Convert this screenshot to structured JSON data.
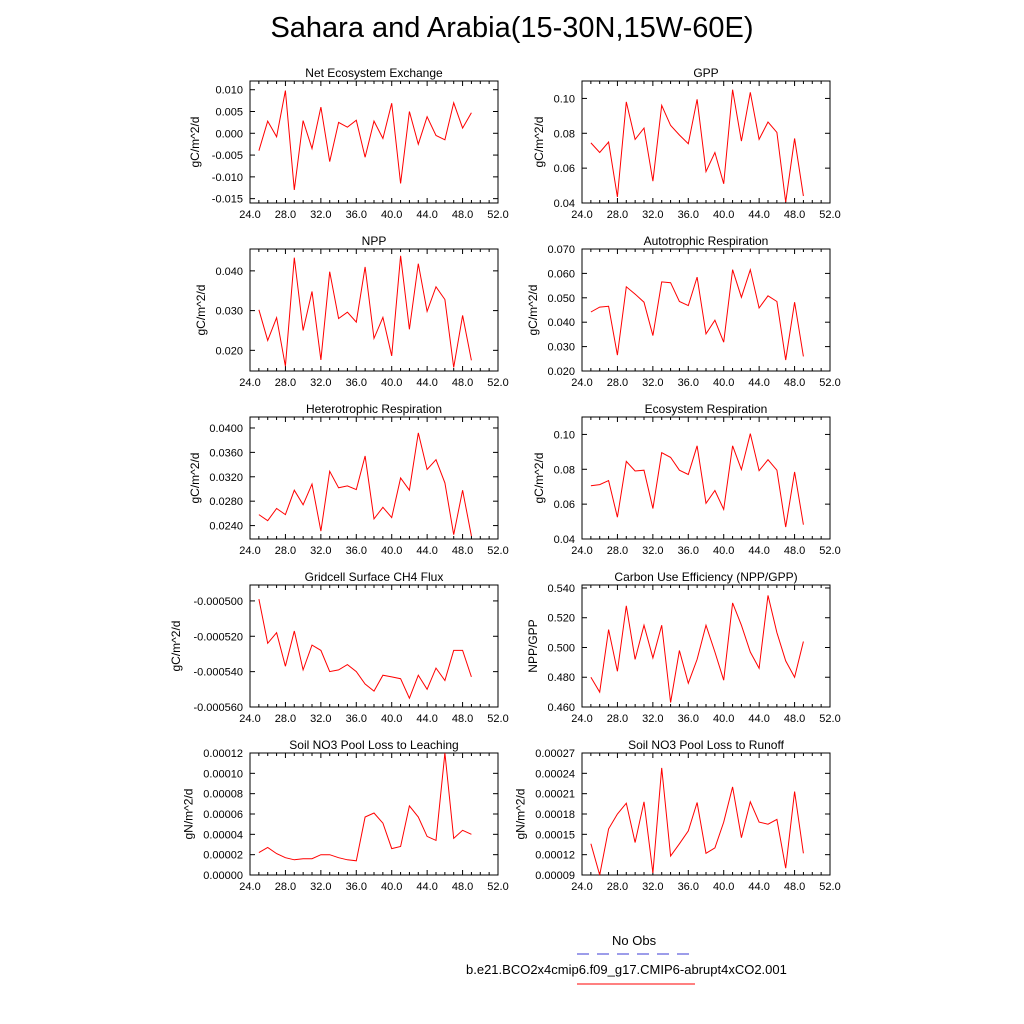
{
  "title": "Sahara and Arabia(15-30N,15W-60E)",
  "legend": {
    "obs_label": "No Obs",
    "model_label": "b.e21.BCO2x4cmip6.f09_g17.CMIP6-abrupt4xCO2.001",
    "obs_color": "#3b3bd6",
    "model_color": "#ff0000"
  },
  "chart_data": [
    {
      "type": "line",
      "title": "Net Ecosystem Exchange",
      "ylabel": "gC/m^2/d",
      "xlim": [
        24,
        52
      ],
      "x_ticks": [
        "24.0",
        "28.0",
        "32.0",
        "36.0",
        "40.0",
        "44.0",
        "48.0",
        "52.0"
      ],
      "ylim": [
        -0.016,
        0.012
      ],
      "y_ticks": [
        "-0.015",
        "-0.010",
        "-0.005",
        "0.000",
        "0.005",
        "0.010"
      ],
      "y_tick_values": [
        -0.015,
        -0.01,
        -0.005,
        0,
        0.005,
        0.01
      ],
      "x": [
        25,
        26,
        27,
        28,
        29,
        30,
        31,
        32,
        33,
        34,
        35,
        36,
        37,
        38,
        39,
        40,
        41,
        42,
        43,
        44,
        45,
        46,
        47,
        48,
        49
      ],
      "values": [
        -0.004,
        0.0028,
        -0.0008,
        0.0098,
        -0.013,
        0.0029,
        -0.0035,
        0.006,
        -0.0065,
        0.0025,
        0.0014,
        0.003,
        -0.0055,
        0.0028,
        -0.0012,
        0.0069,
        -0.0115,
        0.005,
        -0.0025,
        0.0038,
        -0.0005,
        -0.0015,
        0.007,
        0.0012,
        0.0047
      ],
      "line_color": "#ff0000"
    },
    {
      "type": "line",
      "title": "GPP",
      "ylabel": "gC/m^2/d",
      "xlim": [
        24,
        52
      ],
      "x_ticks": [
        "24.0",
        "28.0",
        "32.0",
        "36.0",
        "40.0",
        "44.0",
        "48.0",
        "52.0"
      ],
      "ylim": [
        0.04,
        0.11
      ],
      "y_ticks": [
        "0.04",
        "0.06",
        "0.08",
        "0.10"
      ],
      "y_tick_values": [
        0.04,
        0.06,
        0.08,
        0.1
      ],
      "x": [
        25,
        26,
        27,
        28,
        29,
        30,
        31,
        32,
        33,
        34,
        35,
        36,
        37,
        38,
        39,
        40,
        41,
        42,
        43,
        44,
        45,
        46,
        47,
        48,
        49
      ],
      "values": [
        0.0745,
        0.069,
        0.075,
        0.0435,
        0.098,
        0.0765,
        0.083,
        0.0525,
        0.096,
        0.0845,
        0.079,
        0.074,
        0.0995,
        0.058,
        0.069,
        0.051,
        0.105,
        0.0755,
        0.1035,
        0.0765,
        0.0865,
        0.0805,
        0.0405,
        0.077,
        0.044
      ],
      "line_color": "#ff0000"
    },
    {
      "type": "line",
      "title": "NPP",
      "ylabel": "gC/m^2/d",
      "xlim": [
        24,
        52
      ],
      "x_ticks": [
        "24.0",
        "28.0",
        "32.0",
        "36.0",
        "40.0",
        "44.0",
        "48.0",
        "52.0"
      ],
      "ylim": [
        0.0148,
        0.0455
      ],
      "y_ticks": [
        "0.020",
        "0.030",
        "0.040"
      ],
      "y_tick_values": [
        0.02,
        0.03,
        0.04
      ],
      "x": [
        25,
        26,
        27,
        28,
        29,
        30,
        31,
        32,
        33,
        34,
        35,
        36,
        37,
        38,
        39,
        40,
        41,
        42,
        43,
        44,
        45,
        46,
        47,
        48,
        49
      ],
      "values": [
        0.0302,
        0.0225,
        0.0282,
        0.016,
        0.0433,
        0.025,
        0.0348,
        0.0176,
        0.0398,
        0.028,
        0.0296,
        0.0271,
        0.041,
        0.023,
        0.0283,
        0.0186,
        0.0438,
        0.0253,
        0.0418,
        0.0298,
        0.036,
        0.0328,
        0.0157,
        0.0288,
        0.0175
      ],
      "line_color": "#ff0000"
    },
    {
      "type": "line",
      "title": "Autotrophic Respiration",
      "ylabel": "gC/m^2/d",
      "xlim": [
        24,
        52
      ],
      "x_ticks": [
        "24.0",
        "28.0",
        "32.0",
        "36.0",
        "40.0",
        "44.0",
        "48.0",
        "52.0"
      ],
      "ylim": [
        0.02,
        0.07
      ],
      "y_ticks": [
        "0.020",
        "0.030",
        "0.040",
        "0.050",
        "0.060",
        "0.070"
      ],
      "y_tick_values": [
        0.02,
        0.03,
        0.04,
        0.05,
        0.06,
        0.07
      ],
      "x": [
        25,
        26,
        27,
        28,
        29,
        30,
        31,
        32,
        33,
        34,
        35,
        36,
        37,
        38,
        39,
        40,
        41,
        42,
        43,
        44,
        45,
        46,
        47,
        48,
        49
      ],
      "values": [
        0.0442,
        0.0462,
        0.0465,
        0.0265,
        0.0545,
        0.0515,
        0.0482,
        0.0345,
        0.0565,
        0.0562,
        0.0485,
        0.0468,
        0.0585,
        0.0352,
        0.0408,
        0.0318,
        0.0615,
        0.0502,
        0.0615,
        0.0458,
        0.0508,
        0.0485,
        0.0245,
        0.0482,
        0.026
      ],
      "line_color": "#ff0000"
    },
    {
      "type": "line",
      "title": "Heterotrophic Respiration",
      "ylabel": "gC/m^2/d",
      "xlim": [
        24,
        52
      ],
      "x_ticks": [
        "24.0",
        "28.0",
        "32.0",
        "36.0",
        "40.0",
        "44.0",
        "48.0",
        "52.0"
      ],
      "ylim": [
        0.0218,
        0.0418
      ],
      "y_ticks": [
        "0.0240",
        "0.0280",
        "0.0320",
        "0.0360",
        "0.0400"
      ],
      "y_tick_values": [
        0.024,
        0.028,
        0.032,
        0.036,
        0.04
      ],
      "x": [
        25,
        26,
        27,
        28,
        29,
        30,
        31,
        32,
        33,
        34,
        35,
        36,
        37,
        38,
        39,
        40,
        41,
        42,
        43,
        44,
        45,
        46,
        47,
        48,
        49
      ],
      "values": [
        0.0258,
        0.0248,
        0.0268,
        0.0258,
        0.0298,
        0.0274,
        0.0308,
        0.0231,
        0.0329,
        0.0302,
        0.0305,
        0.0299,
        0.0354,
        0.0251,
        0.027,
        0.0253,
        0.0318,
        0.0298,
        0.0392,
        0.0332,
        0.0348,
        0.031,
        0.0225,
        0.0298,
        0.0223
      ],
      "line_color": "#ff0000"
    },
    {
      "type": "line",
      "title": "Ecosystem Respiration",
      "ylabel": "gC/m^2/d",
      "xlim": [
        24,
        52
      ],
      "x_ticks": [
        "24.0",
        "28.0",
        "32.0",
        "36.0",
        "40.0",
        "44.0",
        "48.0",
        "52.0"
      ],
      "ylim": [
        0.04,
        0.11
      ],
      "y_ticks": [
        "0.04",
        "0.06",
        "0.08",
        "0.10"
      ],
      "y_tick_values": [
        0.04,
        0.06,
        0.08,
        0.1
      ],
      "x": [
        25,
        26,
        27,
        28,
        29,
        30,
        31,
        32,
        33,
        34,
        35,
        36,
        37,
        38,
        39,
        40,
        41,
        42,
        43,
        44,
        45,
        46,
        47,
        48,
        49
      ],
      "values": [
        0.0705,
        0.0712,
        0.0735,
        0.0525,
        0.0845,
        0.079,
        0.0795,
        0.0575,
        0.0895,
        0.0868,
        0.0795,
        0.077,
        0.0935,
        0.0605,
        0.0678,
        0.057,
        0.0935,
        0.0798,
        0.1005,
        0.0792,
        0.0855,
        0.0795,
        0.0468,
        0.0785,
        0.0482
      ],
      "line_color": "#ff0000"
    },
    {
      "type": "line",
      "title": "Gridcell Surface CH4 Flux",
      "ylabel": "gC/m^2/d",
      "xlim": [
        24,
        52
      ],
      "x_ticks": [
        "24.0",
        "28.0",
        "32.0",
        "36.0",
        "40.0",
        "44.0",
        "48.0",
        "52.0"
      ],
      "ylim": [
        -0.00056,
        -0.000491
      ],
      "y_ticks": [
        "-0.000560",
        "-0.000540",
        "-0.000520",
        "-0.000500"
      ],
      "y_tick_values": [
        -0.00056,
        -0.00054,
        -0.00052,
        -0.0005
      ],
      "x": [
        25,
        26,
        27,
        28,
        29,
        30,
        31,
        32,
        33,
        34,
        35,
        36,
        37,
        38,
        39,
        40,
        41,
        42,
        43,
        44,
        45,
        46,
        47,
        48,
        49
      ],
      "values": [
        -0.000499,
        -0.000524,
        -0.000518,
        -0.000537,
        -0.000517,
        -0.000539,
        -0.000525,
        -0.000528,
        -0.00054,
        -0.000539,
        -0.000536,
        -0.00054,
        -0.000547,
        -0.000551,
        -0.000542,
        -0.000543,
        -0.000544,
        -0.000555,
        -0.000542,
        -0.00055,
        -0.000538,
        -0.000545,
        -0.000528,
        -0.000528,
        -0.000543
      ],
      "line_color": "#ff0000"
    },
    {
      "type": "line",
      "title": "Carbon Use Efficiency (NPP/GPP)",
      "ylabel": "NPP/GPP",
      "xlim": [
        24,
        52
      ],
      "x_ticks": [
        "24.0",
        "28.0",
        "32.0",
        "36.0",
        "40.0",
        "44.0",
        "48.0",
        "52.0"
      ],
      "ylim": [
        0.46,
        0.542
      ],
      "y_ticks": [
        "0.460",
        "0.480",
        "0.500",
        "0.520",
        "0.540"
      ],
      "y_tick_values": [
        0.46,
        0.48,
        0.5,
        0.52,
        0.54
      ],
      "x": [
        25,
        26,
        27,
        28,
        29,
        30,
        31,
        32,
        33,
        34,
        35,
        36,
        37,
        38,
        39,
        40,
        41,
        42,
        43,
        44,
        45,
        46,
        47,
        48,
        49
      ],
      "values": [
        0.48,
        0.47,
        0.512,
        0.484,
        0.528,
        0.492,
        0.515,
        0.493,
        0.515,
        0.463,
        0.498,
        0.476,
        0.492,
        0.515,
        0.497,
        0.478,
        0.53,
        0.515,
        0.497,
        0.486,
        0.535,
        0.51,
        0.491,
        0.48,
        0.504
      ],
      "line_color": "#ff0000"
    },
    {
      "type": "line",
      "title": "Soil NO3 Pool Loss to Leaching",
      "ylabel": "gN/m^2/d",
      "xlim": [
        24,
        52
      ],
      "x_ticks": [
        "24.0",
        "28.0",
        "32.0",
        "36.0",
        "40.0",
        "44.0",
        "48.0",
        "52.0"
      ],
      "ylim": [
        0,
        0.00012
      ],
      "y_ticks": [
        "0.00000",
        "0.00002",
        "0.00004",
        "0.00006",
        "0.00008",
        "0.00010",
        "0.00012"
      ],
      "y_tick_values": [
        0,
        2e-05,
        4e-05,
        6e-05,
        8e-05,
        0.0001,
        0.00012
      ],
      "x": [
        25,
        26,
        27,
        28,
        29,
        30,
        31,
        32,
        33,
        34,
        35,
        36,
        37,
        38,
        39,
        40,
        41,
        42,
        43,
        44,
        45,
        46,
        47,
        48,
        49
      ],
      "values": [
        2.2e-05,
        2.7e-05,
        2.1e-05,
        1.7e-05,
        1.5e-05,
        1.6e-05,
        1.6e-05,
        2e-05,
        2e-05,
        1.7e-05,
        1.5e-05,
        1.4e-05,
        5.7e-05,
        6.1e-05,
        5.1e-05,
        2.6e-05,
        2.8e-05,
        6.8e-05,
        5.7e-05,
        3.8e-05,
        3.4e-05,
        0.00012,
        3.6e-05,
        4.4e-05,
        4e-05
      ],
      "line_color": "#ff0000"
    },
    {
      "type": "line",
      "title": "Soil NO3 Pool Loss to Runoff",
      "ylabel": "gN/m^2/d",
      "xlim": [
        24,
        52
      ],
      "x_ticks": [
        "24.0",
        "28.0",
        "32.0",
        "36.0",
        "40.0",
        "44.0",
        "48.0",
        "52.0"
      ],
      "ylim": [
        9e-05,
        0.00027
      ],
      "y_ticks": [
        "0.00009",
        "0.00012",
        "0.00015",
        "0.00018",
        "0.00021",
        "0.00024",
        "0.00027"
      ],
      "y_tick_values": [
        9e-05,
        0.00012,
        0.00015,
        0.00018,
        0.00021,
        0.00024,
        0.00027
      ],
      "x": [
        25,
        26,
        27,
        28,
        29,
        30,
        31,
        32,
        33,
        34,
        35,
        36,
        37,
        38,
        39,
        40,
        41,
        42,
        43,
        44,
        45,
        46,
        47,
        48,
        49
      ],
      "values": [
        0.000136,
        9e-05,
        0.000158,
        0.00018,
        0.000196,
        0.000138,
        0.000198,
        9.3e-05,
        0.000248,
        0.000118,
        0.000136,
        0.000155,
        0.000197,
        0.000122,
        0.00013,
        0.000168,
        0.00022,
        0.000145,
        0.000198,
        0.000168,
        0.000165,
        0.000172,
        0.0001,
        0.000213,
        0.000122
      ],
      "line_color": "#ff0000"
    }
  ]
}
